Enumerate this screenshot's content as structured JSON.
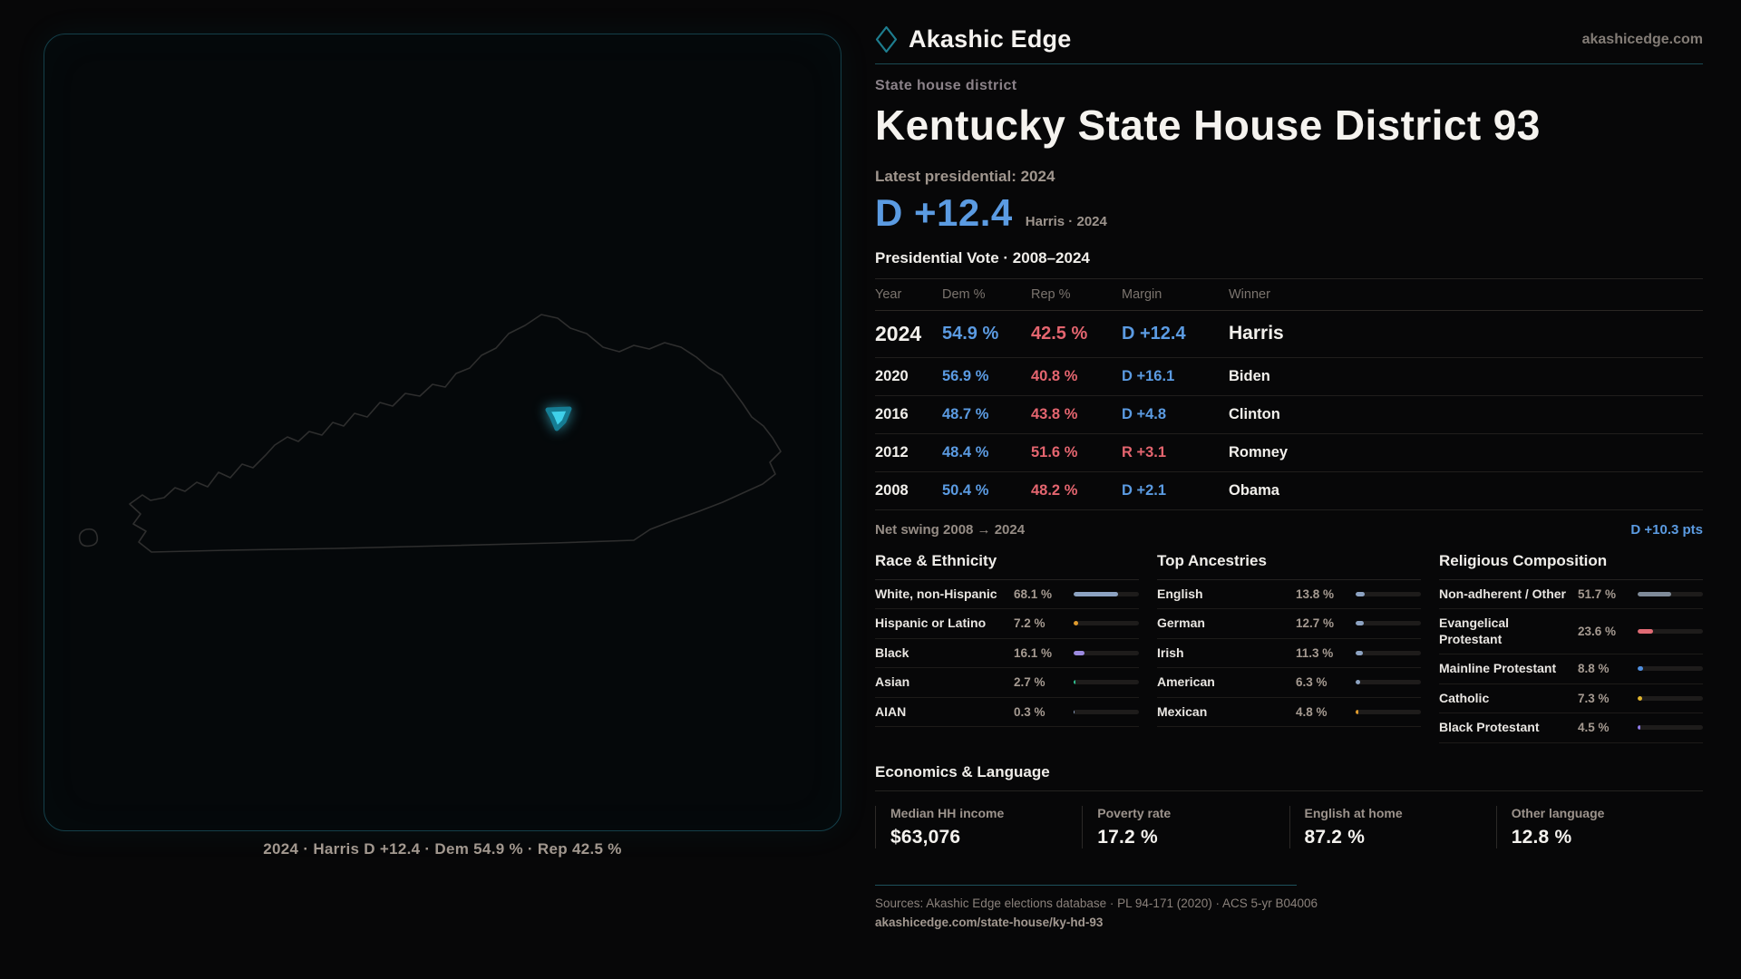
{
  "brand": {
    "name": "Akashic Edge",
    "domain": "akashicedge.com"
  },
  "page": {
    "kicker": "State house district",
    "title": "Kentucky State House District 93",
    "latest_label": "Latest presidential: 2024",
    "headline_margin": "D +12.4",
    "headline_context": "Harris · 2024",
    "table_title": "Presidential Vote · 2008–2024"
  },
  "map": {
    "caption": "2024 · Harris D +12.4 · Dem 54.9 % · Rep 42.5 %",
    "district_fill": "#3fd0ea",
    "district_stroke": "#157c93",
    "outline_color": "#2e2e2e"
  },
  "vote_table": {
    "columns": [
      "Year",
      "Dem %",
      "Rep %",
      "Margin",
      "Winner"
    ],
    "rows": [
      {
        "year": "2024",
        "dem": "54.9 %",
        "rep": "42.5 %",
        "margin": "D +12.4",
        "margin_party": "D",
        "winner": "Harris",
        "emphasis": true
      },
      {
        "year": "2020",
        "dem": "56.9 %",
        "rep": "40.8 %",
        "margin": "D +16.1",
        "margin_party": "D",
        "winner": "Biden",
        "emphasis": false
      },
      {
        "year": "2016",
        "dem": "48.7 %",
        "rep": "43.8 %",
        "margin": "D +4.8",
        "margin_party": "D",
        "winner": "Clinton",
        "emphasis": false
      },
      {
        "year": "2012",
        "dem": "48.4 %",
        "rep": "51.6 %",
        "margin": "R +3.1",
        "margin_party": "R",
        "winner": "Romney",
        "emphasis": false
      },
      {
        "year": "2008",
        "dem": "50.4 %",
        "rep": "48.2 %",
        "margin": "D +2.1",
        "margin_party": "D",
        "winner": "Obama",
        "emphasis": false
      }
    ],
    "net_swing_label": "Net swing 2008 → 2024",
    "net_swing_value": "D +10.3 pts"
  },
  "demographics": [
    {
      "title": "Race & Ethnicity",
      "slug": "race-ethnicity",
      "rows": [
        {
          "label": "White, non-Hispanic",
          "value": "68.1 %",
          "pct": 68.1,
          "color": "#8da3c2"
        },
        {
          "label": "Hispanic or Latino",
          "value": "7.2 %",
          "pct": 7.2,
          "color": "#e09b2d"
        },
        {
          "label": "Black",
          "value": "16.1 %",
          "pct": 16.1,
          "color": "#9c8ae0"
        },
        {
          "label": "Asian",
          "value": "2.7 %",
          "pct": 2.7,
          "color": "#2fbf8f"
        },
        {
          "label": "AIAN",
          "value": "0.3 %",
          "pct": 0.3,
          "color": "#8da3c2"
        }
      ]
    },
    {
      "title": "Top Ancestries",
      "slug": "top-ancestries",
      "rows": [
        {
          "label": "English",
          "value": "13.8 %",
          "pct": 13.8,
          "color": "#8da3c2"
        },
        {
          "label": "German",
          "value": "12.7 %",
          "pct": 12.7,
          "color": "#8da3c2"
        },
        {
          "label": "Irish",
          "value": "11.3 %",
          "pct": 11.3,
          "color": "#8da3c2"
        },
        {
          "label": "American",
          "value": "6.3 %",
          "pct": 6.3,
          "color": "#8da3c2"
        },
        {
          "label": "Mexican",
          "value": "4.8 %",
          "pct": 4.8,
          "color": "#e09b2d"
        }
      ]
    },
    {
      "title": "Religious Composition",
      "slug": "religious-composition",
      "rows": [
        {
          "label": "Non-adherent / Other",
          "value": "51.7 %",
          "pct": 51.7,
          "color": "#7f8b99"
        },
        {
          "label": "Evangelical Protestant",
          "value": "23.6 %",
          "pct": 23.6,
          "color": "#e06a74"
        },
        {
          "label": "Mainline Protestant",
          "value": "8.8 %",
          "pct": 8.8,
          "color": "#4f8fe0"
        },
        {
          "label": "Catholic",
          "value": "7.3 %",
          "pct": 7.3,
          "color": "#e0b52d"
        },
        {
          "label": "Black Protestant",
          "value": "4.5 %",
          "pct": 4.5,
          "color": "#8f7ae8"
        }
      ]
    }
  ],
  "economics": {
    "title": "Economics & Language",
    "stats": [
      {
        "label": "Median HH income",
        "value": "$63,076"
      },
      {
        "label": "Poverty rate",
        "value": "17.2 %"
      },
      {
        "label": "English at home",
        "value": "87.2 %"
      },
      {
        "label": "Other language",
        "value": "12.8 %"
      }
    ]
  },
  "footer": {
    "sources": "Sources: Akashic Edge elections database · PL 94-171 (2020) · ACS 5-yr B04006",
    "permalink": "akashicedge.com/state-house/ky-hd-93"
  },
  "colors": {
    "dem_blue": "#5b9be2",
    "rep_red": "#e4656f",
    "accent_teal": "#1e7d8f",
    "background": "#070708"
  }
}
